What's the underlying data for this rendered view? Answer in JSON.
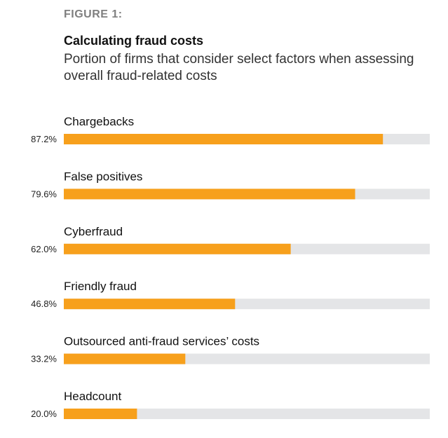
{
  "figure_label": "FIGURE 1:",
  "chart_data": {
    "type": "bar",
    "orientation": "horizontal",
    "title": "Calculating fraud costs",
    "subtitle": "Portion of firms that consider select factors when assessing overall fraud-related costs",
    "categories": [
      "Chargebacks",
      "False positives",
      "Cyberfraud",
      "Friendly fraud",
      "Outsourced anti-fraud services’ costs",
      "Headcount"
    ],
    "values": [
      87.2,
      79.6,
      62.0,
      46.8,
      33.2,
      20.0
    ],
    "value_labels": [
      "87.2%",
      "79.6%",
      "62.0%",
      "46.8%",
      "33.2%",
      "20.0%"
    ],
    "xlim": [
      0,
      100
    ],
    "unit": "%",
    "xlabel": "",
    "ylabel": "",
    "grid": false,
    "legend": "none"
  },
  "colors": {
    "bar": "#F7A01C",
    "track": "#E4E5E7"
  }
}
